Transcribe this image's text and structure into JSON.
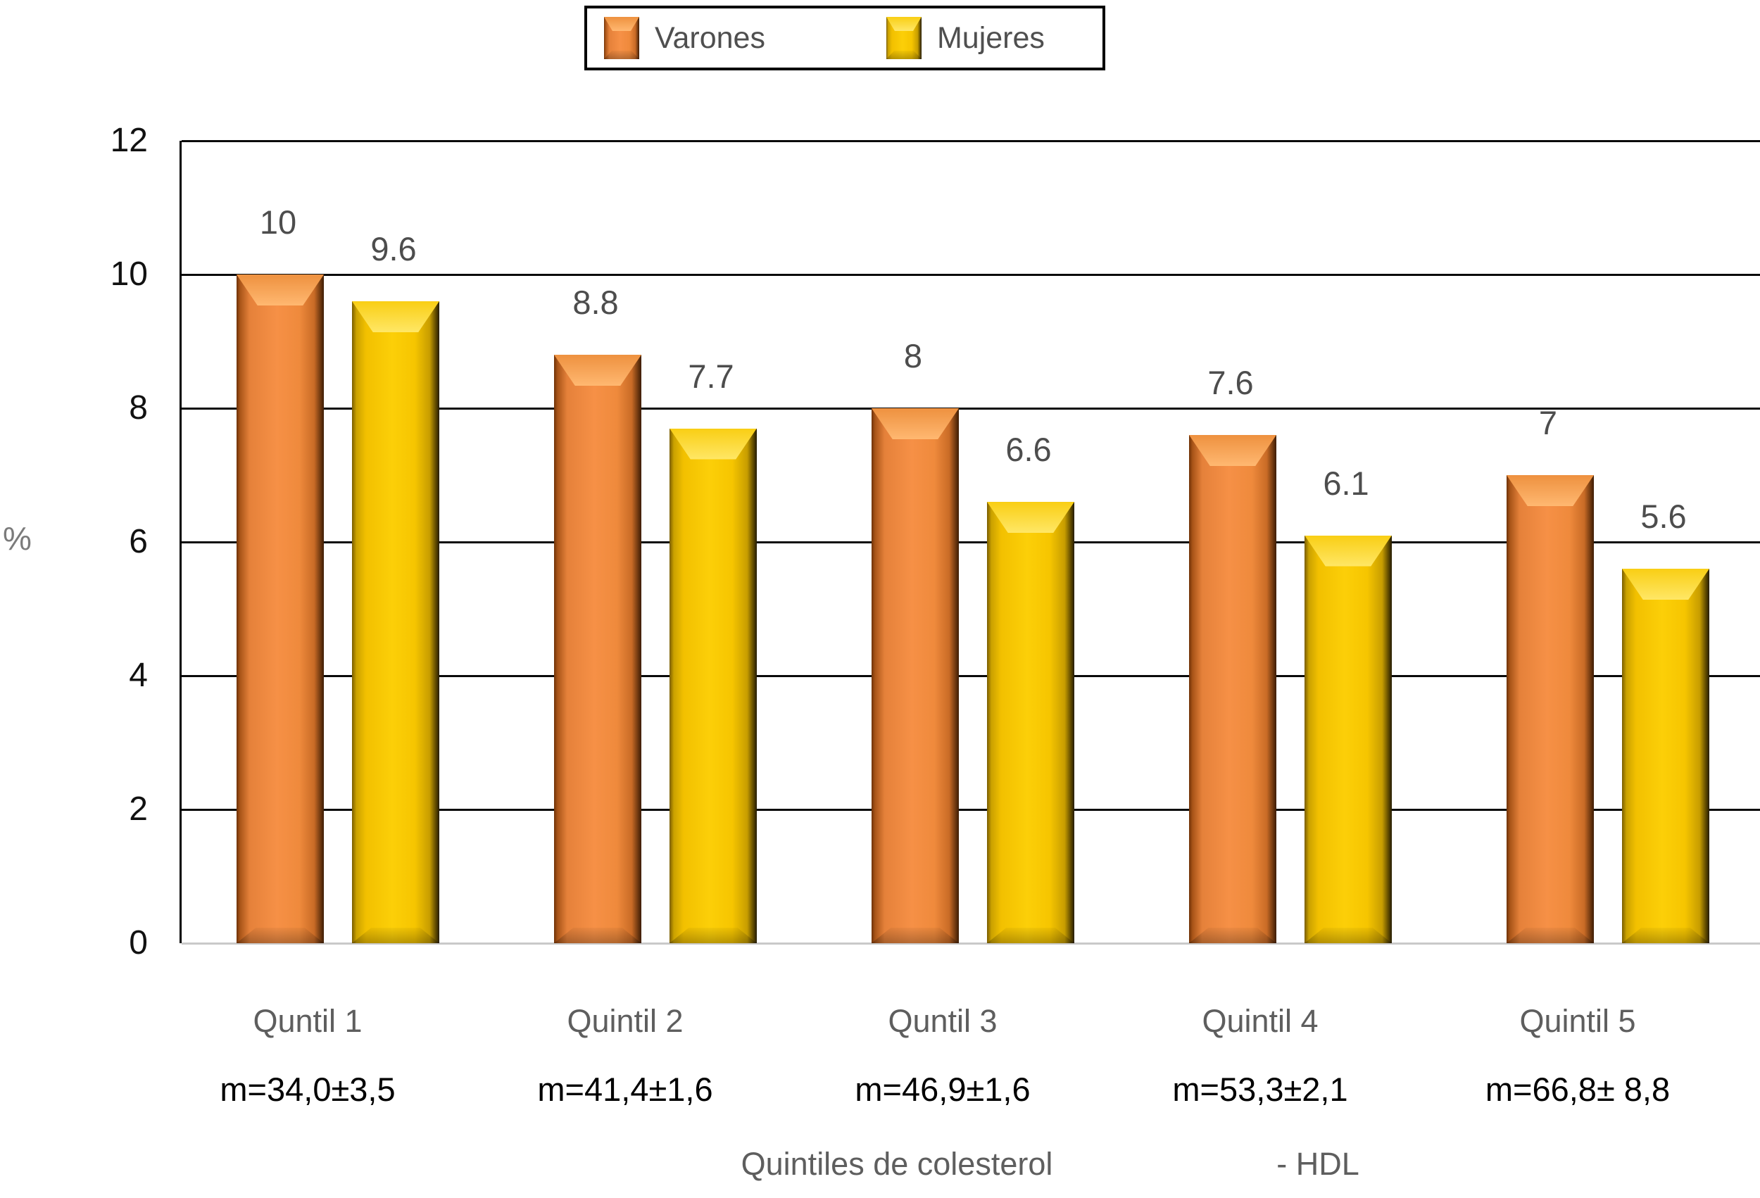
{
  "footer": {
    "title": "Quintiles de colesterol",
    "suffix": "- HDL"
  },
  "colors": {
    "varones": "#ef8a3c",
    "mujeres": "#f6c500",
    "grid": "#0a0a0a",
    "baseline": "#c9c9c9",
    "value_label": "#4d4d4d",
    "category_label": "#5e5e5e"
  },
  "chart_data": {
    "type": "bar",
    "title": "",
    "ylabel": "%",
    "xlabel": "Quintiles de colesterol - HDL",
    "ylim": [
      0,
      12
    ],
    "yticks": [
      0,
      2,
      4,
      6,
      8,
      10,
      12
    ],
    "grid": true,
    "legend_position": "top",
    "categories": [
      "Quntil 1",
      "Quintil 2",
      "Quntil 3",
      "Quintil 4",
      "Quintil 5"
    ],
    "category_sublabels": [
      "m=34,0±3,5",
      "m=41,4±1,6",
      "m=46,9±1,6",
      "m=53,3±2,1",
      "m=66,8± 8,8"
    ],
    "series": [
      {
        "name": "Varones",
        "color": "#ef8a3c",
        "values": [
          10,
          8.8,
          8,
          7.6,
          7
        ]
      },
      {
        "name": "Mujeres",
        "color": "#f6c500",
        "values": [
          9.6,
          7.7,
          6.6,
          6.1,
          5.6
        ]
      }
    ]
  }
}
